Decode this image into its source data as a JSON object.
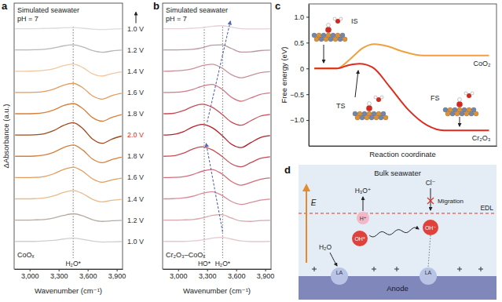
{
  "chart_data": [
    {
      "type": "line",
      "title": "a",
      "subtitle": [
        "Simulated seawater",
        "pH = 7"
      ],
      "sample_label": "CoOₓ",
      "x_label": "Wavenumber (cm⁻¹)",
      "y_label": "ΔAbsorbance (a.u.)",
      "xlim": [
        2840,
        3960
      ],
      "xticks": [
        {
          "value": 3000,
          "label": "3,000"
        },
        {
          "value": 3300,
          "label": "3,300"
        },
        {
          "value": 3600,
          "label": "3,600"
        },
        {
          "value": 3900,
          "label": "3,900"
        }
      ],
      "ylim": [
        -1.3,
        11.2
      ],
      "yticks": [],
      "tick_labels": "x",
      "x": [
        2850,
        2950,
        3050,
        3150,
        3250,
        3350,
        3450,
        3550,
        3650,
        3750,
        3850,
        3950
      ],
      "series": [
        {
          "name": "1.0 V",
          "color": "#cfcfcf",
          "values": [
            0,
            0,
            0,
            0.02,
            0.05,
            0.11,
            0.15,
            0.1,
            0.01,
            -0.03,
            -0.02,
            -0.01
          ]
        },
        {
          "name": "1.2 V",
          "color": "#b4aca4",
          "values": [
            1,
            1,
            1.01,
            1.03,
            1.1,
            1.22,
            1.3,
            1.2,
            1.02,
            0.94,
            0.97,
            0.99
          ]
        },
        {
          "name": "1.4 V",
          "color": "#e9bb8c",
          "values": [
            2,
            2,
            2.01,
            2.04,
            2.14,
            2.3,
            2.39,
            2.24,
            1.98,
            1.86,
            1.93,
            1.98
          ]
        },
        {
          "name": "1.6 V",
          "color": "#e49b5b",
          "values": [
            3,
            3,
            3.01,
            3.05,
            3.18,
            3.38,
            3.49,
            3.29,
            2.94,
            2.78,
            2.89,
            2.97
          ]
        },
        {
          "name": "1.8 V",
          "color": "#d8803b",
          "values": [
            4,
            4,
            4.01,
            4.06,
            4.19,
            4.41,
            4.53,
            4.29,
            3.87,
            3.7,
            3.85,
            3.96
          ]
        },
        {
          "name": "2.0 V",
          "color": "#9e4a1c",
          "values": [
            5,
            5,
            5.01,
            5.06,
            5.21,
            5.45,
            5.58,
            5.3,
            4.81,
            4.61,
            4.81,
            4.95
          ]
        },
        {
          "name": "1.8 V",
          "color": "#d8803b",
          "values": [
            6,
            6,
            6.01,
            6.05,
            6.18,
            6.38,
            6.48,
            6.24,
            5.82,
            5.65,
            5.83,
            5.96
          ]
        },
        {
          "name": "1.6 V",
          "color": "#e49b5b",
          "values": [
            7,
            7,
            7.01,
            7.05,
            7.16,
            7.34,
            7.43,
            7.22,
            6.84,
            6.69,
            6.85,
            6.96
          ]
        },
        {
          "name": "1.4 V",
          "color": "#f0c9a0",
          "values": [
            8,
            8,
            8.01,
            8.04,
            8.12,
            8.26,
            8.34,
            8.17,
            7.88,
            7.77,
            7.89,
            7.97
          ]
        },
        {
          "name": "1.2 V",
          "color": "#b8b8b8",
          "values": [
            9,
            9,
            9.01,
            9.03,
            9.09,
            9.19,
            9.24,
            9.14,
            8.97,
            8.89,
            8.95,
            8.99
          ]
        },
        {
          "name": "1.0 V",
          "color": "#dcdcdc",
          "values": [
            10,
            10,
            10,
            10.01,
            10.02,
            10.04,
            10.05,
            10.02,
            9.98,
            9.96,
            9.98,
            10
          ]
        }
      ],
      "reference_lines": [
        {
          "x": 3450,
          "label": "H₂O*"
        }
      ]
    },
    {
      "type": "line",
      "title": "b",
      "subtitle": [
        "Simulated seawater",
        "pH = 7"
      ],
      "sample_label": "Cr₂O₃–CoOₓ",
      "x_label": "Wavenumber (cm⁻¹)",
      "xlim": [
        2840,
        3960
      ],
      "xticks": [
        {
          "value": 3000,
          "label": "3,000"
        },
        {
          "value": 3300,
          "label": "3,300"
        },
        {
          "value": 3600,
          "label": "3,600"
        },
        {
          "value": 3900,
          "label": "3,900"
        }
      ],
      "ylim": [
        -1.3,
        11.2
      ],
      "yticks": [],
      "tick_labels": "x",
      "x": [
        2850,
        2950,
        3050,
        3150,
        3250,
        3350,
        3450,
        3550,
        3650,
        3750,
        3850,
        3950
      ],
      "series": [
        {
          "color": "#e6c8cc",
          "values": [
            0,
            0,
            0,
            0.02,
            0.07,
            0.15,
            0.19,
            0.11,
            0.02,
            -0.01,
            -0.01,
            0
          ]
        },
        {
          "color": "#d9a5ad",
          "values": [
            1,
            1,
            1.01,
            1.03,
            1.1,
            1.22,
            1.26,
            1.1,
            0.96,
            0.94,
            0.98,
            0.99
          ]
        },
        {
          "color": "#d98c97",
          "values": [
            2,
            2.01,
            2.04,
            2.12,
            2.26,
            2.34,
            2.17,
            1.88,
            1.74,
            1.83,
            1.94,
            1.99
          ]
        },
        {
          "color": "#d26c78",
          "values": [
            3,
            3.01,
            3.04,
            3.14,
            3.3,
            3.38,
            3.18,
            2.82,
            2.64,
            2.77,
            2.92,
            2.98
          ]
        },
        {
          "color": "#c84a55",
          "values": [
            4,
            4.02,
            4.14,
            4.34,
            4.45,
            4.31,
            4.01,
            3.65,
            3.51,
            3.7,
            3.9,
            3.98
          ]
        },
        {
          "color": "#b5202c",
          "values": [
            5,
            5.03,
            5.15,
            5.38,
            5.5,
            5.35,
            5,
            4.57,
            4.41,
            4.64,
            4.88,
            4.97
          ]
        },
        {
          "color": "#c84a55",
          "values": [
            6,
            6.02,
            6.14,
            6.34,
            6.45,
            6.31,
            5.99,
            5.61,
            5.46,
            5.67,
            5.89,
            5.97
          ]
        },
        {
          "color": "#d27a86",
          "values": [
            7,
            7.01,
            7.04,
            7.14,
            7.3,
            7.38,
            7.17,
            6.78,
            6.59,
            6.74,
            6.91,
            6.98
          ]
        },
        {
          "color": "#c9919a",
          "values": [
            8,
            8.01,
            8.04,
            8.12,
            8.26,
            8.33,
            8.16,
            7.84,
            7.69,
            7.8,
            7.93,
            7.98
          ]
        },
        {
          "color": "#b99aa0",
          "values": [
            9,
            9,
            9.01,
            9.03,
            9.1,
            9.22,
            9.24,
            9.07,
            8.9,
            8.91,
            8.97,
            8.99
          ]
        },
        {
          "color": "#e8d0d4",
          "values": [
            10,
            10,
            10,
            10.02,
            10.05,
            10.11,
            10.14,
            10.07,
            10,
            9.99,
            9.99,
            10
          ]
        }
      ],
      "reference_lines": [
        {
          "x": 3270,
          "label": "HO*"
        },
        {
          "x": 3460,
          "label": "H₂O*"
        }
      ],
      "arrows": [
        {
          "x": [
            3460,
            3290
          ],
          "y": [
            0.45,
            4.6
          ]
        },
        {
          "x": [
            3300,
            3540
          ],
          "y": [
            5.6,
            10.35
          ]
        }
      ]
    },
    {
      "type": "line",
      "title": "c",
      "x_label": "Reaction coordinate",
      "y_label": "Free energy (eV)",
      "xlim": [
        0,
        10
      ],
      "xticks": [],
      "ylim": [
        -1.5,
        1.25
      ],
      "yticks": [
        {
          "value": -1,
          "label": "−1.0"
        },
        {
          "value": -0.5,
          "label": "−0.5"
        },
        0,
        0.5,
        {
          "value": 1,
          "label": "1.0"
        }
      ],
      "tick_labels": "y",
      "series": [
        {
          "name": "CoO₂",
          "color": "#f0a040",
          "x": [
            0.3,
            1.5,
            2.2,
            2.9,
            3.5,
            4.2,
            5.0,
            6.1,
            9.6
          ],
          "values": [
            0,
            0,
            0.18,
            0.4,
            0.47,
            0.43,
            0.33,
            0.25,
            0.25
          ]
        },
        {
          "name": "Cr₂O₃",
          "color": "#e02a1e",
          "x": [
            0.3,
            1.5,
            2.1,
            2.7,
            3.4,
            4.3,
            5.3,
            6.3,
            7.2,
            9.6
          ],
          "values": [
            0,
            0,
            0.06,
            0.09,
            0.02,
            -0.35,
            -0.8,
            -1.1,
            -1.2,
            -1.2
          ]
        }
      ],
      "annotations": [
        "IS",
        "TS",
        "FS"
      ]
    }
  ],
  "diagram": {
    "title": "d",
    "bulk": "Bulk seawater",
    "edl": "EDL",
    "field": "E",
    "anode": "Anode",
    "hydronium": "H₃O⁺",
    "proton": "H⁺",
    "chloride": "Cl⁻",
    "migration": "Migration",
    "water": "H₂O",
    "adsorbed_hydroxyl": "OH*",
    "hydroxide": "OH⁻",
    "lewis_acid": [
      "LA",
      "LA"
    ]
  }
}
